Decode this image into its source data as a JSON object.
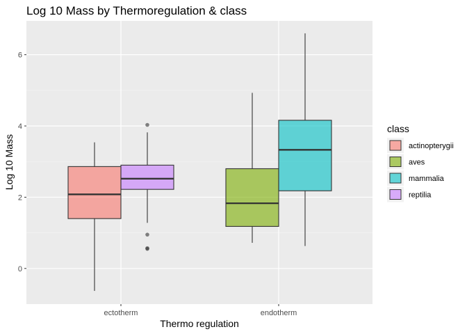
{
  "chart_data": {
    "type": "boxplot",
    "title": "Log 10 Mass by Thermoregulation & class",
    "xlabel": "Thermo regulation",
    "ylabel": "Log 10 Mass",
    "categories": [
      "ectotherm",
      "endotherm"
    ],
    "ylim": [
      -1.0,
      6.95
    ],
    "yticks": [
      0,
      2,
      4,
      6
    ],
    "grid": true,
    "legend": {
      "title": "class",
      "position": "right",
      "entries": [
        {
          "name": "actinopterygii",
          "color": "#F8766D"
        },
        {
          "name": "aves",
          "color": "#7CAE00"
        },
        {
          "name": "mammalia",
          "color": "#00BFC4"
        },
        {
          "name": "reptilia",
          "color": "#C77CFF"
        }
      ]
    },
    "boxes": [
      {
        "category": "ectotherm",
        "class": "actinopterygii",
        "whisker_low": -0.63,
        "q1": 1.4,
        "median": 2.08,
        "q3": 2.86,
        "whisker_high": 3.54,
        "outliers": []
      },
      {
        "category": "ectotherm",
        "class": "reptilia",
        "whisker_low": 1.28,
        "q1": 2.22,
        "median": 2.52,
        "q3": 2.9,
        "whisker_high": 3.82,
        "outliers": [
          4.03,
          0.95,
          0.57,
          0.55
        ]
      },
      {
        "category": "endotherm",
        "class": "aves",
        "whisker_low": 0.72,
        "q1": 1.18,
        "median": 1.83,
        "q3": 2.8,
        "whisker_high": 4.93,
        "outliers": []
      },
      {
        "category": "endotherm",
        "class": "mammalia",
        "whisker_low": 0.63,
        "q1": 2.18,
        "median": 3.33,
        "q3": 4.16,
        "whisker_high": 6.6,
        "outliers": []
      }
    ]
  }
}
